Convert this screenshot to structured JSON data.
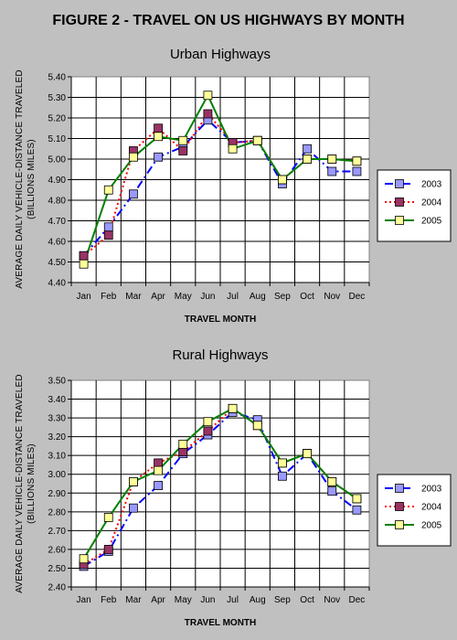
{
  "figure_title": "FIGURE 2 - TRAVEL ON US HIGHWAYS BY MONTH",
  "colors": {
    "background": "#c0c0c0",
    "plot_background": "#ffffff",
    "s2003_line": "#0000ff",
    "s2003_marker": "#9999ff",
    "s2004_line": "#ff0000",
    "s2004_marker": "#993366",
    "s2005_line": "#008000",
    "s2005_marker": "#ffff99"
  },
  "chart_data": [
    {
      "type": "line",
      "title": "Urban Highways",
      "xlabel": "TRAVEL MONTH",
      "ylabel_lines": [
        "AVERAGE DAILY VEHICLE-DISTANCE TRAVELED",
        "(BILLIONS MILES)"
      ],
      "categories": [
        "Jan",
        "Feb",
        "Mar",
        "Apr",
        "May",
        "Jun",
        "Jul",
        "Aug",
        "Sep",
        "Oct",
        "Nov",
        "Dec"
      ],
      "ylim": [
        4.4,
        5.4
      ],
      "ystep": 0.1,
      "grid": true,
      "legend_position": "right",
      "series": [
        {
          "name": "2003",
          "values": [
            4.53,
            4.67,
            4.83,
            5.01,
            5.06,
            5.19,
            5.08,
            5.09,
            4.88,
            5.05,
            4.94,
            4.94
          ]
        },
        {
          "name": "2004",
          "values": [
            4.53,
            4.63,
            5.04,
            5.15,
            5.04,
            5.22,
            5.08,
            5.09,
            4.9,
            5.0,
            5.0,
            4.99
          ]
        },
        {
          "name": "2005",
          "values": [
            4.49,
            4.85,
            5.01,
            5.11,
            5.09,
            5.31,
            5.05,
            5.09,
            4.9,
            5.0,
            5.0,
            4.99
          ]
        }
      ]
    },
    {
      "type": "line",
      "title": "Rural Highways",
      "xlabel": "TRAVEL MONTH",
      "ylabel_lines": [
        "AVERAGE DAILY VEHICLE-DISTANCE TRAVELED",
        "(BILLIONS MILES)"
      ],
      "categories": [
        "Jan",
        "Feb",
        "Mar",
        "Apr",
        "May",
        "Jun",
        "Jul",
        "Aug",
        "Sep",
        "Oct",
        "Nov",
        "Dec"
      ],
      "ylim": [
        2.4,
        3.5
      ],
      "ystep": 0.1,
      "grid": true,
      "legend_position": "right",
      "series": [
        {
          "name": "2003",
          "values": [
            2.51,
            2.59,
            2.82,
            2.94,
            3.11,
            3.21,
            3.33,
            3.29,
            2.99,
            3.11,
            2.91,
            2.81
          ]
        },
        {
          "name": "2004",
          "values": [
            2.52,
            2.6,
            2.96,
            3.06,
            3.12,
            3.23,
            3.35,
            3.26,
            3.06,
            3.11,
            2.96,
            2.87
          ]
        },
        {
          "name": "2005",
          "values": [
            2.55,
            2.77,
            2.96,
            3.02,
            3.16,
            3.28,
            3.35,
            3.26,
            3.06,
            3.11,
            2.96,
            2.87
          ]
        }
      ]
    }
  ]
}
